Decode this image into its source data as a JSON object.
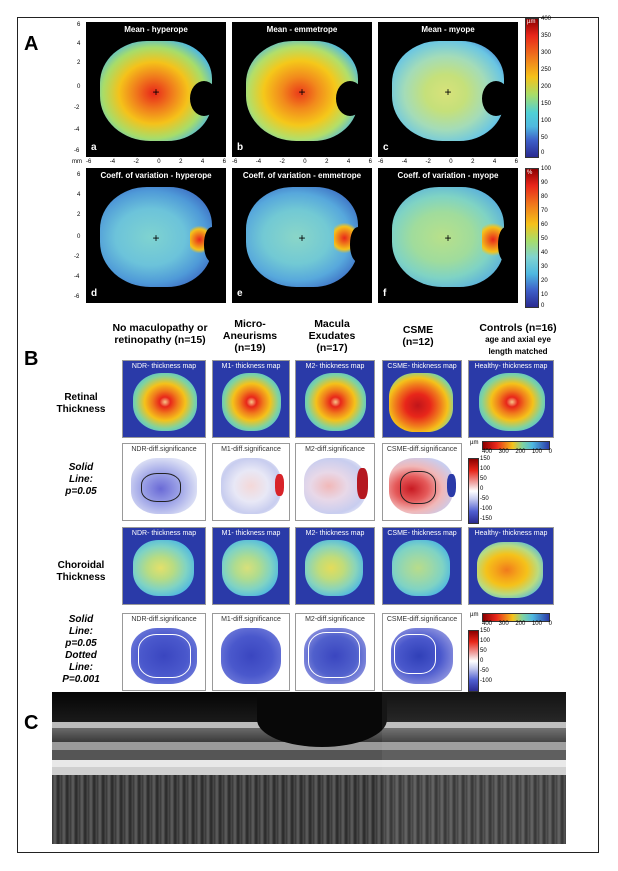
{
  "panel_A": {
    "letter": "A",
    "row1": [
      {
        "title": "Mean - hyperope",
        "sub": "a"
      },
      {
        "title": "Mean - emmetrope",
        "sub": "b"
      },
      {
        "title": "Mean - myope",
        "sub": "c"
      }
    ],
    "row2": [
      {
        "title": "Coeff. of variation - hyperope",
        "sub": "d"
      },
      {
        "title": "Coeff. of variation - emmetrope",
        "sub": "e"
      },
      {
        "title": "Coeff. of variation - myope",
        "sub": "f"
      }
    ],
    "yticks": [
      "6",
      "4",
      "2",
      "0",
      "-2",
      "-4",
      "-6"
    ],
    "xticks": [
      "-6",
      "-4",
      "-2",
      "0",
      "2",
      "4",
      "6"
    ],
    "axis_unit": "mm",
    "cbar1_unit": "µm",
    "cbar1_ticks": [
      "400",
      "350",
      "300",
      "250",
      "200",
      "150",
      "100",
      "50",
      "0"
    ],
    "cbar2_unit": "%",
    "cbar2_ticks": [
      "100",
      "90",
      "80",
      "70",
      "60",
      "50",
      "40",
      "30",
      "20",
      "10",
      "0"
    ]
  },
  "panel_B": {
    "letter": "B",
    "columns": [
      {
        "lines": [
          "No maculopathy or",
          "retinopathy (n=15)"
        ]
      },
      {
        "lines": [
          "Micro-",
          "Aneurisms",
          "(n=19)"
        ]
      },
      {
        "lines": [
          "Macula",
          "Exudates",
          "(n=17)"
        ]
      },
      {
        "lines": [
          "CSME",
          "(n=12)"
        ]
      },
      {
        "lines": [
          "Controls (n=16)"
        ],
        "small": [
          "age and axial eye",
          "length matched"
        ]
      }
    ],
    "row_labels": [
      {
        "lines": [
          "Retinal",
          "Thickness"
        ],
        "italic": false
      },
      {
        "lines": [
          "Solid",
          "Line:",
          "p=0.05"
        ],
        "italic": true
      },
      {
        "lines": [
          "Choroidal",
          "Thickness"
        ],
        "italic": false
      },
      {
        "lines": [
          "Solid",
          "Line:",
          "p=0.05",
          "Dotted",
          "Line:",
          "P=0.001"
        ],
        "italic": true
      }
    ],
    "retinal_maps": [
      "NDR- thickness map",
      "M1- thickness map",
      "M2- thickness map",
      "CSME- thickness map",
      "Healthy- thickness map"
    ],
    "retinal_sig": [
      "NDR-diff.significance",
      "M1-diff.significance",
      "M2-diff.significance",
      "CSME-diff.significance"
    ],
    "choroid_maps": [
      "NDR- thickness map",
      "M1- thickness map",
      "M2- thickness map",
      "CSME- thickness map",
      "Healthy- thickness map"
    ],
    "choroid_sig": [
      "NDR-diff.significance",
      "M1-diff.significance",
      "M2-diff.significance",
      "CSME-diff.significance"
    ],
    "cbar_unit": "µm",
    "hbar_ticks": [
      "400",
      "300",
      "200",
      "100",
      "0"
    ],
    "vbar_ticks": [
      "150",
      "100",
      "50",
      "0",
      "-50",
      "-100",
      "-150"
    ]
  },
  "panel_C": {
    "letter": "C"
  },
  "colors": {
    "map_blue": "#2a3aa8",
    "hot": "#e8261a",
    "warm": "#f5c21a",
    "cool": "#7fd3d0"
  }
}
